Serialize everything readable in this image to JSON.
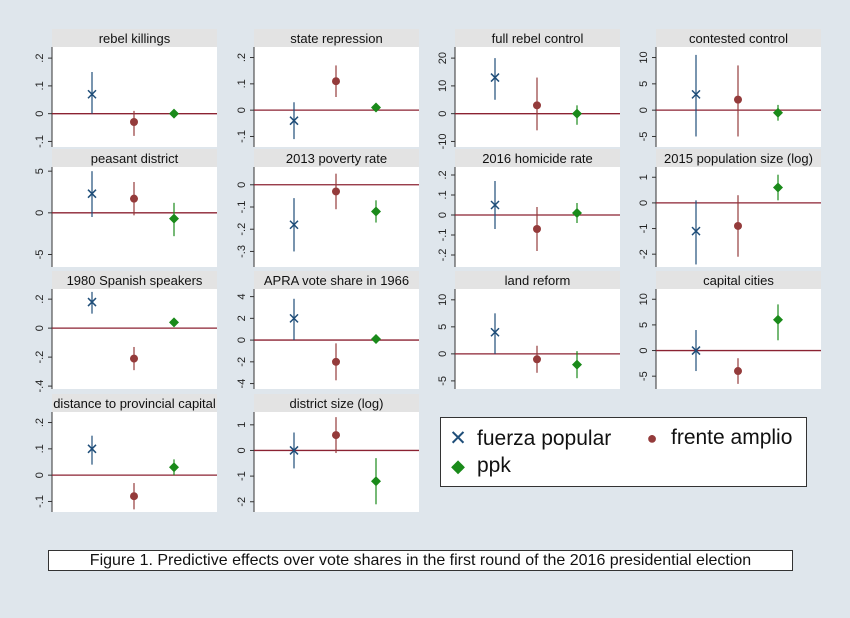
{
  "colors": {
    "fuerza_popular": "#1f4e79",
    "frente_amplio": "#943b3b",
    "ppk": "#1a8a1a",
    "zero_line": "#8b2232",
    "panel_title_bg": "#e3e3e3",
    "background": "#dfe6ec"
  },
  "legend": {
    "items": [
      {
        "label": "fuerza popular",
        "marker": "x"
      },
      {
        "label": "frente amplio",
        "marker": "circle"
      },
      {
        "label": "ppk",
        "marker": "diamond"
      }
    ]
  },
  "caption": "Figure 1. Predictive effects over vote shares in the first round of the 2016 presidential election",
  "chart_data": [
    {
      "type": "scatter",
      "title": "rebel killings",
      "ylim": [
        -0.12,
        0.24
      ],
      "ticks": [
        {
          "v": -0.1,
          "label": "-.1"
        },
        {
          "v": 0,
          "label": "0"
        },
        {
          "v": 0.1,
          "label": ".1"
        },
        {
          "v": 0.2,
          "label": ".2"
        }
      ],
      "series": [
        {
          "name": "fuerza popular",
          "marker": "x",
          "estimate": 0.07,
          "ci": [
            0.0,
            0.15
          ]
        },
        {
          "name": "frente amplio",
          "marker": "circle",
          "estimate": -0.03,
          "ci": [
            -0.08,
            0.01
          ]
        },
        {
          "name": "ppk",
          "marker": "diamond",
          "estimate": 0.0,
          "ci": [
            -0.005,
            0.005
          ]
        }
      ]
    },
    {
      "type": "scatter",
      "title": "state repression",
      "ylim": [
        -0.14,
        0.24
      ],
      "ticks": [
        {
          "v": -0.1,
          "label": "-.1"
        },
        {
          "v": 0,
          "label": "0"
        },
        {
          "v": 0.1,
          "label": ".1"
        },
        {
          "v": 0.2,
          "label": ".2"
        }
      ],
      "series": [
        {
          "name": "fuerza popular",
          "marker": "x",
          "estimate": -0.04,
          "ci": [
            -0.11,
            0.03
          ]
        },
        {
          "name": "frente amplio",
          "marker": "circle",
          "estimate": 0.11,
          "ci": [
            0.05,
            0.17
          ]
        },
        {
          "name": "ppk",
          "marker": "diamond",
          "estimate": 0.01,
          "ci": [
            0.0,
            0.02
          ]
        }
      ]
    },
    {
      "type": "scatter",
      "title": "full rebel control",
      "ylim": [
        -12,
        24
      ],
      "ticks": [
        {
          "v": -10,
          "label": "-10"
        },
        {
          "v": 0,
          "label": "0"
        },
        {
          "v": 10,
          "label": "10"
        },
        {
          "v": 20,
          "label": "20"
        }
      ],
      "series": [
        {
          "name": "fuerza popular",
          "marker": "x",
          "estimate": 13,
          "ci": [
            5,
            20
          ]
        },
        {
          "name": "frente amplio",
          "marker": "circle",
          "estimate": 3,
          "ci": [
            -6,
            13
          ]
        },
        {
          "name": "ppk",
          "marker": "diamond",
          "estimate": 0,
          "ci": [
            -4,
            3
          ]
        }
      ]
    },
    {
      "type": "scatter",
      "title": "contested control",
      "ylim": [
        -7,
        12
      ],
      "ticks": [
        {
          "v": -5,
          "label": "-5"
        },
        {
          "v": 0,
          "label": "0"
        },
        {
          "v": 5,
          "label": "5"
        },
        {
          "v": 10,
          "label": "10"
        }
      ],
      "series": [
        {
          "name": "fuerza popular",
          "marker": "x",
          "estimate": 3,
          "ci": [
            -5,
            10.5
          ]
        },
        {
          "name": "frente amplio",
          "marker": "circle",
          "estimate": 2,
          "ci": [
            -5,
            8.5
          ]
        },
        {
          "name": "ppk",
          "marker": "diamond",
          "estimate": -0.5,
          "ci": [
            -2,
            1
          ]
        }
      ]
    },
    {
      "type": "scatter",
      "title": "peasant district",
      "ylim": [
        -6.5,
        5.5
      ],
      "ticks": [
        {
          "v": -5,
          "label": "-5"
        },
        {
          "v": 0,
          "label": "0"
        },
        {
          "v": 5,
          "label": "5"
        }
      ],
      "series": [
        {
          "name": "fuerza popular",
          "marker": "x",
          "estimate": 2.3,
          "ci": [
            -0.5,
            5
          ]
        },
        {
          "name": "frente amplio",
          "marker": "circle",
          "estimate": 1.7,
          "ci": [
            -0.3,
            3.7
          ]
        },
        {
          "name": "ppk",
          "marker": "diamond",
          "estimate": -0.7,
          "ci": [
            -2.8,
            1.2
          ]
        }
      ]
    },
    {
      "type": "scatter",
      "title": "2013 poverty rate",
      "ylim": [
        -0.37,
        0.08
      ],
      "ticks": [
        {
          "v": -0.3,
          "label": "-.3"
        },
        {
          "v": -0.2,
          "label": "-.2"
        },
        {
          "v": -0.1,
          "label": "-.1"
        },
        {
          "v": 0,
          "label": "0"
        }
      ],
      "series": [
        {
          "name": "fuerza popular",
          "marker": "x",
          "estimate": -0.18,
          "ci": [
            -0.3,
            -0.06
          ]
        },
        {
          "name": "frente amplio",
          "marker": "circle",
          "estimate": -0.03,
          "ci": [
            -0.11,
            0.05
          ]
        },
        {
          "name": "ppk",
          "marker": "diamond",
          "estimate": -0.12,
          "ci": [
            -0.17,
            -0.07
          ]
        }
      ]
    },
    {
      "type": "scatter",
      "title": "2016 homicide rate",
      "ylim": [
        -0.26,
        0.24
      ],
      "ticks": [
        {
          "v": -0.2,
          "label": "-.2"
        },
        {
          "v": -0.1,
          "label": "-.1"
        },
        {
          "v": 0,
          "label": "0"
        },
        {
          "v": 0.1,
          "label": ".1"
        },
        {
          "v": 0.2,
          "label": ".2"
        }
      ],
      "series": [
        {
          "name": "fuerza popular",
          "marker": "x",
          "estimate": 0.05,
          "ci": [
            -0.07,
            0.17
          ]
        },
        {
          "name": "frente amplio",
          "marker": "circle",
          "estimate": -0.07,
          "ci": [
            -0.18,
            0.04
          ]
        },
        {
          "name": "ppk",
          "marker": "diamond",
          "estimate": 0.01,
          "ci": [
            -0.04,
            0.06
          ]
        }
      ]
    },
    {
      "type": "scatter",
      "title": "2015 population size (log)",
      "ylim": [
        -2.5,
        1.4
      ],
      "ticks": [
        {
          "v": -2,
          "label": "-2"
        },
        {
          "v": -1,
          "label": "-1"
        },
        {
          "v": 0,
          "label": "0"
        },
        {
          "v": 1,
          "label": "1"
        }
      ],
      "series": [
        {
          "name": "fuerza popular",
          "marker": "x",
          "estimate": -1.1,
          "ci": [
            -2.4,
            0.1
          ]
        },
        {
          "name": "frente amplio",
          "marker": "circle",
          "estimate": -0.9,
          "ci": [
            -2.1,
            0.3
          ]
        },
        {
          "name": "ppk",
          "marker": "diamond",
          "estimate": 0.6,
          "ci": [
            0.1,
            1.1
          ]
        }
      ]
    },
    {
      "type": "scatter",
      "title": "1980 Spanish speakers",
      "ylim": [
        -0.42,
        0.27
      ],
      "ticks": [
        {
          "v": -0.4,
          "label": "-.4"
        },
        {
          "v": -0.2,
          "label": "-.2"
        },
        {
          "v": 0,
          "label": "0"
        },
        {
          "v": 0.2,
          "label": ".2"
        }
      ],
      "series": [
        {
          "name": "fuerza popular",
          "marker": "x",
          "estimate": 0.18,
          "ci": [
            0.1,
            0.25
          ]
        },
        {
          "name": "frente amplio",
          "marker": "circle",
          "estimate": -0.21,
          "ci": [
            -0.29,
            -0.13
          ]
        },
        {
          "name": "ppk",
          "marker": "diamond",
          "estimate": 0.04,
          "ci": [
            0.02,
            0.06
          ]
        }
      ]
    },
    {
      "type": "scatter",
      "title": "APRA vote share in 1966",
      "ylim": [
        -4.5,
        4.7
      ],
      "ticks": [
        {
          "v": -4,
          "label": "-4"
        },
        {
          "v": -2,
          "label": "-2"
        },
        {
          "v": 0,
          "label": "0"
        },
        {
          "v": 2,
          "label": "2"
        },
        {
          "v": 4,
          "label": "4"
        }
      ],
      "series": [
        {
          "name": "fuerza popular",
          "marker": "x",
          "estimate": 2,
          "ci": [
            0,
            3.8
          ]
        },
        {
          "name": "frente amplio",
          "marker": "circle",
          "estimate": -2,
          "ci": [
            -3.7,
            -0.3
          ]
        },
        {
          "name": "ppk",
          "marker": "diamond",
          "estimate": 0.1,
          "ci": [
            -0.3,
            0.5
          ]
        }
      ]
    },
    {
      "type": "scatter",
      "title": "land reform",
      "ylim": [
        -6.5,
        12
      ],
      "ticks": [
        {
          "v": -5,
          "label": "-5"
        },
        {
          "v": 0,
          "label": "0"
        },
        {
          "v": 5,
          "label": "5"
        },
        {
          "v": 10,
          "label": "10"
        }
      ],
      "series": [
        {
          "name": "fuerza popular",
          "marker": "x",
          "estimate": 4,
          "ci": [
            0,
            7.5
          ]
        },
        {
          "name": "frente amplio",
          "marker": "circle",
          "estimate": -1,
          "ci": [
            -3.5,
            1.5
          ]
        },
        {
          "name": "ppk",
          "marker": "diamond",
          "estimate": -2,
          "ci": [
            -4.5,
            0.5
          ]
        }
      ]
    },
    {
      "type": "scatter",
      "title": "capital cities",
      "ylim": [
        -7.5,
        12
      ],
      "ticks": [
        {
          "v": -5,
          "label": "-5"
        },
        {
          "v": 0,
          "label": "0"
        },
        {
          "v": 5,
          "label": "5"
        },
        {
          "v": 10,
          "label": "10"
        }
      ],
      "series": [
        {
          "name": "fuerza popular",
          "marker": "x",
          "estimate": 0,
          "ci": [
            -4,
            4
          ]
        },
        {
          "name": "frente amplio",
          "marker": "circle",
          "estimate": -4,
          "ci": [
            -6.5,
            -1.5
          ]
        },
        {
          "name": "ppk",
          "marker": "diamond",
          "estimate": 6,
          "ci": [
            2,
            9
          ]
        }
      ]
    },
    {
      "type": "scatter",
      "title": "distance to provincial capital",
      "ylim": [
        -0.14,
        0.24
      ],
      "ticks": [
        {
          "v": -0.1,
          "label": "-.1"
        },
        {
          "v": 0,
          "label": "0"
        },
        {
          "v": 0.1,
          "label": ".1"
        },
        {
          "v": 0.2,
          "label": ".2"
        }
      ],
      "series": [
        {
          "name": "fuerza popular",
          "marker": "x",
          "estimate": 0.1,
          "ci": [
            0.04,
            0.15
          ]
        },
        {
          "name": "frente amplio",
          "marker": "circle",
          "estimate": -0.08,
          "ci": [
            -0.13,
            -0.03
          ]
        },
        {
          "name": "ppk",
          "marker": "diamond",
          "estimate": 0.03,
          "ci": [
            0.0,
            0.06
          ]
        }
      ]
    },
    {
      "type": "scatter",
      "title": "district size (log)",
      "ylim": [
        -2.4,
        1.5
      ],
      "ticks": [
        {
          "v": -2,
          "label": "-2"
        },
        {
          "v": -1,
          "label": "-1"
        },
        {
          "v": 0,
          "label": "0"
        },
        {
          "v": 1,
          "label": "1"
        }
      ],
      "series": [
        {
          "name": "fuerza popular",
          "marker": "x",
          "estimate": 0,
          "ci": [
            -0.7,
            0.7
          ]
        },
        {
          "name": "frente amplio",
          "marker": "circle",
          "estimate": 0.6,
          "ci": [
            -0.1,
            1.3
          ]
        },
        {
          "name": "ppk",
          "marker": "diamond",
          "estimate": -1.2,
          "ci": [
            -2.1,
            -0.3
          ]
        }
      ]
    }
  ]
}
